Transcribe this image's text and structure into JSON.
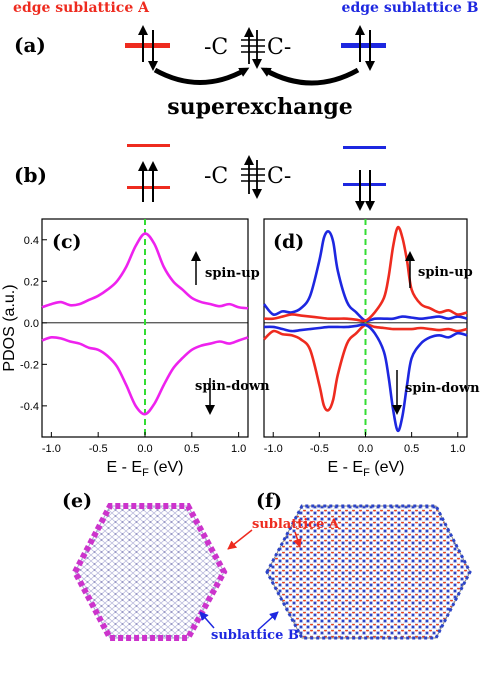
{
  "header": {
    "sublattice_a": "edge sublattice A",
    "sublattice_b": "edge sublattice B"
  },
  "panel_labels": {
    "a": "(a)",
    "b": "(b)",
    "c": "(c)",
    "d": "(d)",
    "e": "(e)",
    "f": "(f)"
  },
  "diagram": {
    "bond_left": "-C",
    "bond_right": "C-",
    "superexchange_label": "superexchange"
  },
  "colors": {
    "sublattice_a": "#ee2b1f",
    "sublattice_b": "#1d27e0",
    "pdos": "#ee22ee",
    "fermi_line": "#33dd33",
    "atom_a": "#e8401e",
    "atom_b": "#2c44c8",
    "edge_density": "#cc33cc"
  },
  "annotations": {
    "c_up": "spin-up",
    "c_down": "spin-down",
    "d_up": "spin-up",
    "d_down": "spin-down",
    "sublattice_a_label": "sublattice A",
    "sublattice_b_label": "sublattice B"
  },
  "chart_data": [
    {
      "type": "line",
      "panel": "c",
      "xlabel": "E - E",
      "xlabel_sub": "F",
      "xlabel_unit": " (eV)",
      "ylabel": "PDOS (a.u.)",
      "xlim": [
        -1.1,
        1.1
      ],
      "ylim": [
        -0.55,
        0.5
      ],
      "xticks": [
        -1.0,
        -0.5,
        0.0,
        0.5,
        1.0
      ],
      "xtick_labels": [
        "-1.0",
        "-0.5",
        "0.0",
        "0.5",
        "1.0"
      ],
      "yticks": [
        -0.4,
        -0.2,
        0.0,
        0.2,
        0.4
      ],
      "ytick_labels": [
        "-0.4",
        "-0.2",
        "0.0",
        "0.2",
        "0.4"
      ],
      "series": [
        {
          "color_key": "pdos",
          "x": [
            -1.1,
            -1.0,
            -0.9,
            -0.8,
            -0.7,
            -0.6,
            -0.5,
            -0.4,
            -0.3,
            -0.2,
            -0.1,
            0.0,
            0.1,
            0.2,
            0.3,
            0.4,
            0.5,
            0.6,
            0.7,
            0.8,
            0.9,
            1.0,
            1.1
          ],
          "y": [
            0.075,
            0.09,
            0.1,
            0.085,
            0.09,
            0.11,
            0.13,
            0.16,
            0.2,
            0.27,
            0.37,
            0.43,
            0.38,
            0.27,
            0.2,
            0.16,
            0.12,
            0.1,
            0.09,
            0.08,
            0.09,
            0.075,
            0.07
          ]
        },
        {
          "color_key": "pdos",
          "x": [
            -1.1,
            -1.0,
            -0.9,
            -0.8,
            -0.7,
            -0.6,
            -0.5,
            -0.4,
            -0.3,
            -0.2,
            -0.1,
            0.0,
            0.1,
            0.2,
            0.3,
            0.4,
            0.5,
            0.6,
            0.7,
            0.8,
            0.9,
            1.0,
            1.1
          ],
          "y": [
            -0.085,
            -0.07,
            -0.075,
            -0.09,
            -0.1,
            -0.12,
            -0.13,
            -0.16,
            -0.21,
            -0.3,
            -0.4,
            -0.44,
            -0.39,
            -0.3,
            -0.22,
            -0.17,
            -0.13,
            -0.11,
            -0.1,
            -0.09,
            -0.1,
            -0.085,
            -0.07
          ]
        }
      ]
    },
    {
      "type": "line",
      "panel": "d",
      "xlabel": "E - E",
      "xlabel_sub": "F",
      "xlabel_unit": " (eV)",
      "xlim": [
        -1.1,
        1.1
      ],
      "ylim": [
        -0.55,
        0.5
      ],
      "xticks": [
        -1.0,
        -0.5,
        0.0,
        0.5,
        1.0
      ],
      "xtick_labels": [
        "-1.0",
        "-0.5",
        "0.0",
        "0.5",
        "1.0"
      ],
      "series": [
        {
          "color_key": "sublattice_b",
          "x": [
            -1.1,
            -1.0,
            -0.9,
            -0.8,
            -0.7,
            -0.6,
            -0.5,
            -0.45,
            -0.4,
            -0.35,
            -0.3,
            -0.2,
            -0.1,
            0.0,
            0.1,
            0.2,
            0.3,
            0.4,
            0.5,
            0.6,
            0.7,
            0.8,
            0.9,
            1.0,
            1.1
          ],
          "y": [
            0.09,
            0.04,
            0.055,
            0.05,
            0.07,
            0.13,
            0.3,
            0.41,
            0.44,
            0.39,
            0.25,
            0.1,
            0.05,
            0.01,
            0.02,
            0.02,
            0.02,
            0.03,
            0.025,
            0.02,
            0.025,
            0.03,
            0.02,
            0.03,
            0.02
          ]
        },
        {
          "color_key": "sublattice_a",
          "x": [
            -1.1,
            -1.0,
            -0.9,
            -0.8,
            -0.7,
            -0.6,
            -0.5,
            -0.4,
            -0.3,
            -0.2,
            -0.1,
            0.0,
            0.1,
            0.2,
            0.25,
            0.3,
            0.35,
            0.4,
            0.45,
            0.5,
            0.6,
            0.7,
            0.8,
            0.9,
            1.0,
            1.1
          ],
          "y": [
            0.02,
            0.02,
            0.03,
            0.04,
            0.035,
            0.03,
            0.025,
            0.02,
            0.02,
            0.02,
            0.015,
            0.01,
            0.05,
            0.12,
            0.22,
            0.37,
            0.46,
            0.41,
            0.3,
            0.16,
            0.09,
            0.07,
            0.05,
            0.06,
            0.04,
            0.05
          ]
        },
        {
          "color_key": "sublattice_a",
          "x": [
            -1.1,
            -1.0,
            -0.9,
            -0.8,
            -0.7,
            -0.6,
            -0.5,
            -0.45,
            -0.4,
            -0.35,
            -0.3,
            -0.2,
            -0.1,
            0.0,
            0.1,
            0.2,
            0.3,
            0.4,
            0.5,
            0.6,
            0.7,
            0.8,
            0.9,
            1.0,
            1.1
          ],
          "y": [
            -0.08,
            -0.04,
            -0.055,
            -0.06,
            -0.08,
            -0.13,
            -0.3,
            -0.4,
            -0.42,
            -0.37,
            -0.25,
            -0.1,
            -0.05,
            -0.01,
            -0.02,
            -0.025,
            -0.03,
            -0.03,
            -0.03,
            -0.025,
            -0.03,
            -0.035,
            -0.03,
            -0.04,
            -0.03
          ]
        },
        {
          "color_key": "sublattice_b",
          "x": [
            -1.1,
            -1.0,
            -0.9,
            -0.8,
            -0.7,
            -0.6,
            -0.5,
            -0.4,
            -0.3,
            -0.2,
            -0.1,
            0.0,
            0.1,
            0.2,
            0.25,
            0.3,
            0.35,
            0.4,
            0.45,
            0.5,
            0.6,
            0.7,
            0.8,
            0.9,
            1.0,
            1.1
          ],
          "y": [
            -0.02,
            -0.02,
            -0.03,
            -0.04,
            -0.035,
            -0.03,
            -0.025,
            -0.02,
            -0.02,
            -0.02,
            -0.015,
            -0.01,
            -0.05,
            -0.14,
            -0.26,
            -0.42,
            -0.52,
            -0.45,
            -0.3,
            -0.17,
            -0.1,
            -0.07,
            -0.06,
            -0.07,
            -0.05,
            -0.06
          ]
        }
      ]
    }
  ]
}
